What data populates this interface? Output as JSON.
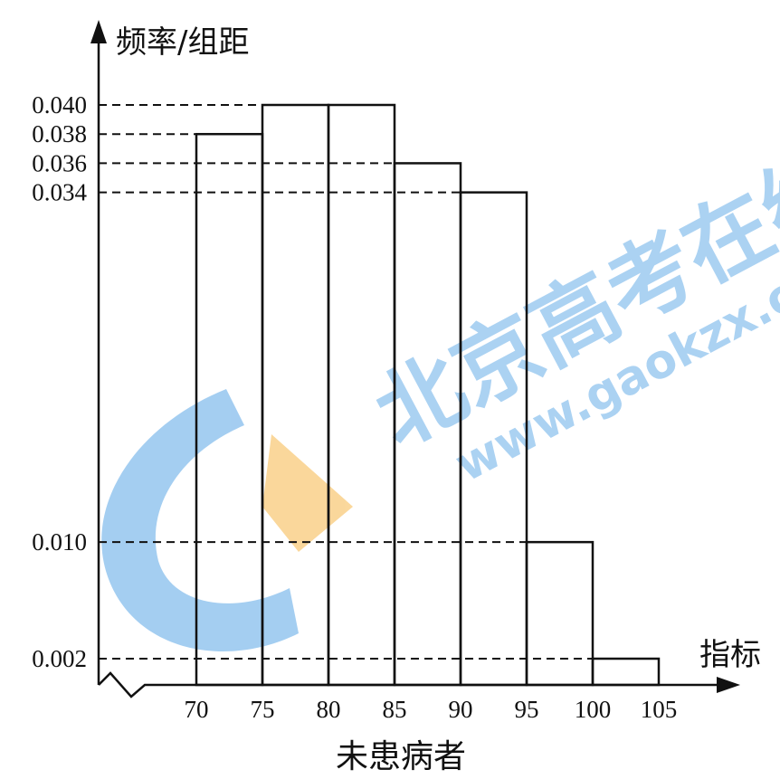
{
  "chart_data": {
    "type": "bar",
    "subtype": "histogram",
    "title": "",
    "xlabel": "指标",
    "ylabel": "频率/组距",
    "caption": "未患病者",
    "bins": [
      {
        "from": 70,
        "to": 75,
        "value": 0.038
      },
      {
        "from": 75,
        "to": 80,
        "value": 0.04
      },
      {
        "from": 80,
        "to": 85,
        "value": 0.04
      },
      {
        "from": 85,
        "to": 90,
        "value": 0.036
      },
      {
        "from": 90,
        "to": 95,
        "value": 0.034
      },
      {
        "from": 95,
        "to": 100,
        "value": 0.01
      },
      {
        "from": 100,
        "to": 105,
        "value": 0.002
      }
    ],
    "x_ticks": [
      "70",
      "75",
      "80",
      "85",
      "90",
      "95",
      "100",
      "105"
    ],
    "y_ticks": [
      {
        "value": 0.04,
        "label": "0.040"
      },
      {
        "value": 0.038,
        "label": "0.038"
      },
      {
        "value": 0.036,
        "label": "0.036"
      },
      {
        "value": 0.034,
        "label": "0.034"
      },
      {
        "value": 0.01,
        "label": "0.010"
      },
      {
        "value": 0.002,
        "label": "0.002"
      }
    ],
    "axis_break": true,
    "grid": false,
    "guide_lines": "dashed"
  },
  "watermark": {
    "cjk": "北京高考在线",
    "url": "www.gaokzx.com",
    "colors": {
      "blue": "#5aa6e6",
      "orange": "#f7b84b"
    }
  }
}
